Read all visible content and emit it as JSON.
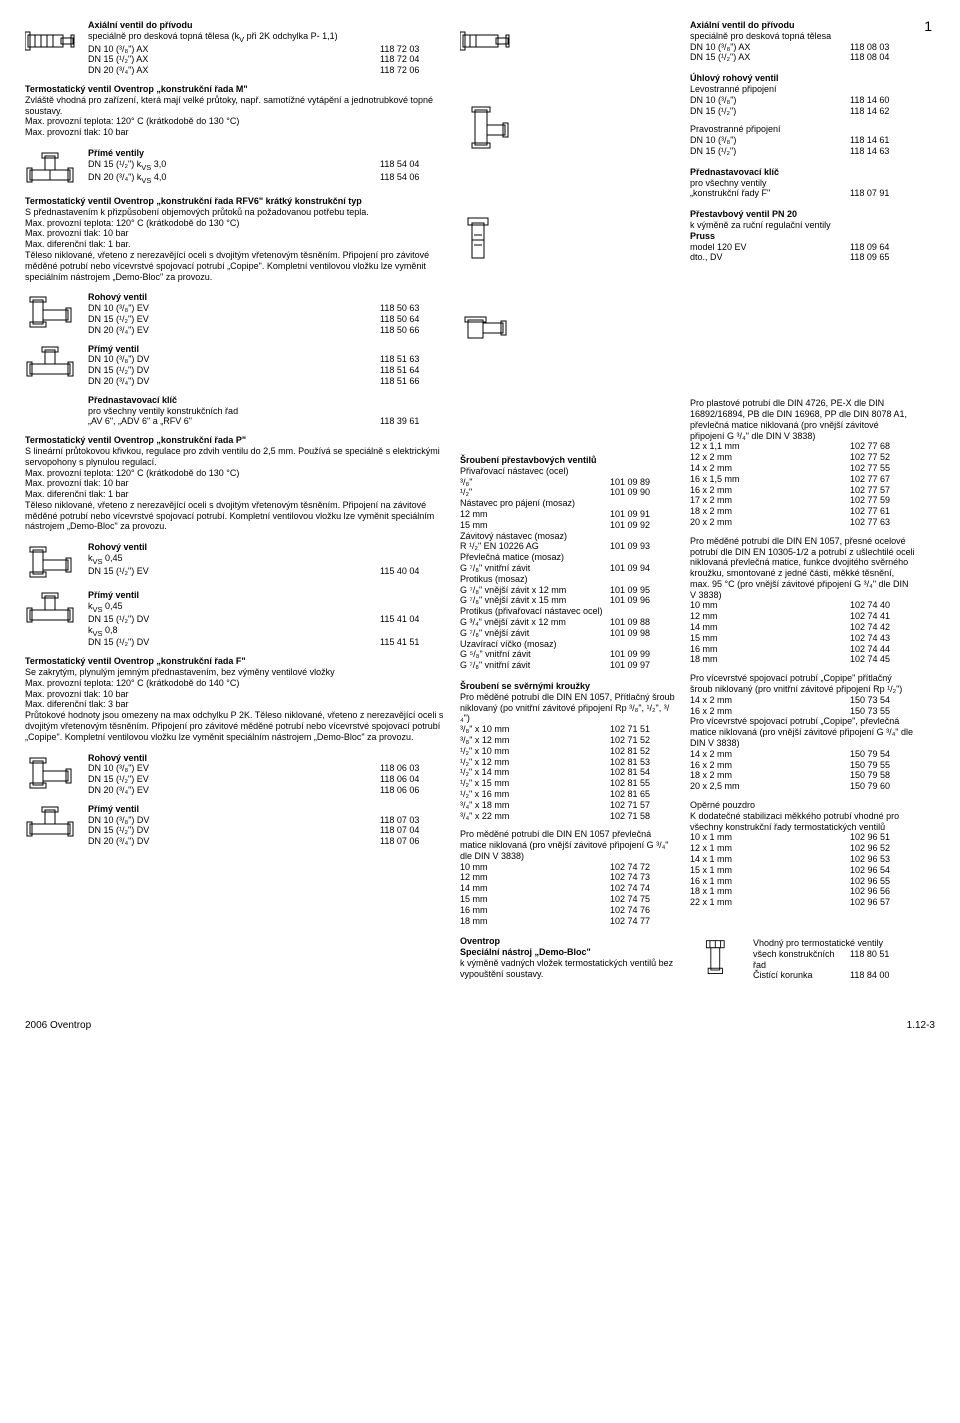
{
  "pageNum": "1",
  "footer": {
    "left": "2006 Oventrop",
    "right": "1.12-3"
  },
  "colLeft": {
    "sec1": {
      "title": "Axiální ventil do přívodu",
      "sub": "speciálně pro desková topná tělesa (k<sub>V</sub> při 2K odchylka P- 1,1)",
      "rows": [
        {
          "l": "DN 10 (³/₈\") AX",
          "r": "118 72 03"
        },
        {
          "l": "DN 15 (¹/₂\") AX",
          "r": "118 72 04"
        },
        {
          "l": "DN 20 (³/₄\") AX",
          "r": "118 72 06"
        }
      ]
    },
    "sec2": {
      "title": "Termostatický ventil Oventrop „konstrukční řada M\"",
      "body": "Zvláště vhodná pro zařízení, která mají velké průtoky, např. samotížné vytápění a jednotrubkové topné soustavy.",
      "p1": "Max. provozní teplota:      120° C (krátkodobě do 130 °C)",
      "p2": "Max. provozní tlak:            10 bar"
    },
    "sec3": {
      "title": "Přímé ventily",
      "rows": [
        {
          "l": "DN 15 (¹/₂\") k<sub>VS</sub> 3,0",
          "r": "118 54 04"
        },
        {
          "l": "DN 20 (³/₄\") k<sub>VS</sub> 4,0",
          "r": "118 54 06"
        }
      ]
    },
    "sec4": {
      "title": "Termostatický ventil Oventrop „konstrukční řada RFV6\" krátký konstrukční typ",
      "body": "S přednastavením k přizpůsobení objemových průtoků na požadovanou potřebu tepla.",
      "p1": "Max. provozní teplota:     120° C (krátkodobě do 130 °C)",
      "p2": "Max. provozní tlak:          10 bar",
      "p3": "Max. diferenční tlak:        1 bar.",
      "body2": "Těleso niklované, vřeteno z nerezavějící oceli s dvojitým vřetenovým těsněním. Připojení pro závitové měděné potrubí nebo vícevrstvé spojovací potrubí „Copipe\". Kompletní ventilovou vložku lze vyměnit speciálním nástrojem „Demo-Bloc\" za provozu."
    },
    "sec5": {
      "title": "Rohový ventil",
      "rows": [
        {
          "l": "DN 10 (³/₈\") EV",
          "r": "118 50 63"
        },
        {
          "l": "DN 15 (¹/₂\") EV",
          "r": "118 50 64"
        },
        {
          "l": "DN 20 (³/₄\") EV",
          "r": "118 50 66"
        }
      ]
    },
    "sec6": {
      "title": "Přímý ventil",
      "rows": [
        {
          "l": "DN 10 (³/₈\") DV",
          "r": "118 51 63"
        },
        {
          "l": "DN 15 (¹/₂\") DV",
          "r": "118 51 64"
        },
        {
          "l": "DN 20 (³/₄\") DV",
          "r": "118 51 66"
        }
      ]
    },
    "sec7": {
      "title": "Přednastavovací klíč",
      "sub": "pro všechny ventily konstrukčních řad",
      "row": {
        "l": "„AV 6\", „ADV 6\" a „RFV 6\"",
        "r": "118 39 61"
      }
    },
    "sec8": {
      "title": "Termostatický ventil Oventrop „konstrukční řada P\"",
      "body": "S lineární průtokovou křivkou, regulace pro zdvih ventilu do 2,5 mm. Používá se speciálně s elektrickými servopohony s plynulou regulací.",
      "p1": "Max. provozní teplota:     120° C (krátkodobě do 130 °C)",
      "p2": "Max. provozní tlak:          10 bar",
      "p3": "Max. diferenční tlak:        1 bar",
      "body2": "Těleso niklované, vřeteno z nerezavějící oceli s dvojitým vřetenovým těsněním. Připojení na závitové měděné potrubí nebo vícevrstvé spojovací potrubí. Kompletní ventilovou vložku lze vyměnit speciálním nástrojem „Demo-Bloc\" za provozu."
    },
    "sec9": {
      "title": "Rohový ventil",
      "sub": "k<sub>VS</sub> 0,45",
      "rows": [
        {
          "l": "DN 15 (¹/₂\") EV",
          "r": "115 40 04"
        }
      ]
    },
    "sec10": {
      "title": "Přímý ventil",
      "sub1": "k<sub>VS</sub> 0,45",
      "row1": {
        "l": "DN 15 (¹/₂\") DV",
        "r": "115 41 04"
      },
      "sub2": "k<sub>VS</sub> 0,8",
      "row2": {
        "l": "DN 15 (¹/₂\") DV",
        "r": "115 41 51"
      }
    },
    "sec11": {
      "title": "Termostatický ventil Oventrop „konstrukční řada F\"",
      "body": "Se zakrytým, plynulým jemným přednastavením, bez výměny ventilové vložky",
      "p1": "Max. provozní teplota:     120° C (krátkodobě do 140 °C)",
      "p2": "Max. provozní tlak:          10 bar",
      "p3": "Max. diferenční tlak:        3 bar",
      "body2": "Průtokové hodnoty jsou omezeny na max odchylku P 2K. Těleso niklované, vřeteno z nerezavějící oceli s dvojitým vřetenovým těsněním. Připojení pro závitové měděné potrubí nebo vícevrstvé spojovací potrubí „Copipe\". Kompletní ventilovou vložku lze vyměnit speciálním nástrojem „Demo-Bloc\" za provozu."
    },
    "sec12": {
      "title": "Rohový ventil",
      "rows": [
        {
          "l": "DN 10 (³/₈\") EV",
          "r": "118 06 03"
        },
        {
          "l": "DN 15 (¹/₂\") EV",
          "r": "118 06 04"
        },
        {
          "l": "DN 20 (³/₄\") EV",
          "r": "118 06 06"
        }
      ]
    },
    "sec13": {
      "title": "Přímý ventil",
      "rows": [
        {
          "l": "DN 10 (³/₈\") DV",
          "r": "118 07 03"
        },
        {
          "l": "DN 15 (¹/₂\") DV",
          "r": "118 07 04"
        },
        {
          "l": "DN 20 (³/₄\") DV",
          "r": "118 07 06"
        }
      ]
    }
  },
  "colMid": {
    "sec1": {
      "title": "Šroubení přestavbových ventilů",
      "sub1": "Přivařovací nástavec (ocel)",
      "rows1": [
        {
          "l": "³/₈\"",
          "r": "101 09 89"
        },
        {
          "l": "¹/₂\"",
          "r": "101 09 90"
        }
      ],
      "sub2": "Nástavec pro pájení (mosaz)",
      "rows2": [
        {
          "l": "12 mm",
          "r": "101 09 91"
        },
        {
          "l": "15 mm",
          "r": "101 09 92"
        }
      ],
      "sub3": "Závitový nástavec (mosaz)",
      "rows3": [
        {
          "l": "R ¹/₂\" EN 10226 AG",
          "r": "101 09 93"
        }
      ],
      "sub4": "Převlečná matice (mosaz)",
      "rows4": [
        {
          "l": "G ⁷/₈\" vnitřní závit",
          "r": "101 09 94"
        }
      ],
      "sub5": "Protikus (mosaz)",
      "rows5": [
        {
          "l": "G ⁷/₈\" vnější závit x 12 mm",
          "r": "101 09 95"
        },
        {
          "l": "G ⁷/₈\" vnější závit x 15 mm",
          "r": "101 09 96"
        }
      ],
      "sub6": "Protikus (přivařovací nástavec ocel)",
      "rows6": [
        {
          "l": "G ³/₄\" vnější závit x 12 mm",
          "r": "101 09 88"
        },
        {
          "l": "G ⁷/₈\" vnější závit",
          "r": "101 09 98"
        }
      ],
      "sub7": "Uzavírací víčko (mosaz)",
      "rows7": [
        {
          "l": "G ⁵/₈\" vnitřní závit",
          "r": "101 09 99"
        },
        {
          "l": "G ⁷/₈\" vnitřní závit",
          "r": "101 09 97"
        }
      ]
    },
    "sec2": {
      "title": "Šroubení se svěrnými kroužky",
      "body": "Pro měděné potrubí dle DIN EN 1057, Přítlačný šroub niklovaný (po vnitřní závitové připojení Rp ³/₈\", ¹/₂\", ³/₄\")",
      "rows": [
        {
          "l": "³/₈\" x 10 mm",
          "r": "102 71 51"
        },
        {
          "l": "³/₈\" x 12 mm",
          "r": "102 71 52"
        },
        {
          "l": "¹/₂\" x 10 mm",
          "r": "102 81 52"
        },
        {
          "l": "¹/₂\" x 12 mm",
          "r": "102 81 53"
        },
        {
          "l": "¹/₂\" x 14 mm",
          "r": "102 81 54"
        },
        {
          "l": "¹/₂\" x 15 mm",
          "r": "102 81 55"
        },
        {
          "l": "¹/₂\" x 16 mm",
          "r": "102 81 65"
        },
        {
          "l": "³/₄\" x 18 mm",
          "r": "102 71 57"
        },
        {
          "l": "³/₄\" x 22 mm",
          "r": "102 71 58"
        }
      ],
      "body2": "Pro měděné potrubí dle DIN EN 1057 převlečná matice niklovaná (pro vnější závitové připojení G ³/₄\" dle DIN V 3838)",
      "rows2": [
        {
          "l": "10 mm",
          "r": "102 74 72"
        },
        {
          "l": "12 mm",
          "r": "102 74 73"
        },
        {
          "l": "14 mm",
          "r": "102 74 74"
        },
        {
          "l": "15 mm",
          "r": "102 74 75"
        },
        {
          "l": "16 mm",
          "r": "102 74 76"
        },
        {
          "l": "18 mm",
          "r": "102 74 77"
        }
      ]
    },
    "sec3": {
      "title": "Oventrop",
      "sub": "Speciální nástroj „Demo-Bloc\"",
      "body": "k výměně vadných vložek termostatických ventilů bez vypouštění soustavy."
    }
  },
  "colRight": {
    "sec1": {
      "title": "Axiální ventil do přívodu",
      "sub": "speciálně pro desková topná tělesa",
      "rows": [
        {
          "l": "DN 10 (³/₈\") AX",
          "r": "118 08 03"
        },
        {
          "l": "DN 15 (¹/₂\") AX",
          "r": "118 08 04"
        }
      ]
    },
    "sec2": {
      "title": "Úhlový rohový ventil",
      "sub": "Levostranné připojení",
      "rows": [
        {
          "l": "DN 10 (³/₈\")",
          "r": "118 14 60"
        },
        {
          "l": "DN 15 (¹/₂\")",
          "r": "118 14 62"
        }
      ],
      "sub2": "Pravostranné připojení",
      "rows2": [
        {
          "l": "DN 10 (³/₈\")",
          "r": "118 14 61"
        },
        {
          "l": "DN 15 (¹/₂\")",
          "r": "118 14 63"
        }
      ]
    },
    "sec3": {
      "title": "Přednastavovací klíč",
      "sub": "pro všechny ventily",
      "row": {
        "l": "„konstrukční řady F\"",
        "r": "118 07 91"
      }
    },
    "sec4": {
      "title": "Přestavbový ventil PN 20",
      "sub": "k výměně za ruční regulační ventily",
      "sub2": "Pruss",
      "rows": [
        {
          "l": "model 120 EV",
          "r": "118 09 64"
        },
        {
          "l": "dto., DV",
          "r": "118 09 65"
        }
      ]
    },
    "sec5": {
      "body": "Pro plastové potrubí dle DIN 4726, PE-X dle DIN 16892/16894, PB dle DIN 16968, PP dle DIN 8078 A1, převlečná matice niklovaná (pro vnější závitové připojení G ³/₄\" dle DIN V 3838)",
      "rows": [
        {
          "l": "12 x 1,1 mm",
          "r": "102 77 68"
        },
        {
          "l": "12 x 2    mm",
          "r": "102 77 52"
        },
        {
          "l": "14 x 2    mm",
          "r": "102 77 55"
        },
        {
          "l": "16 x 1,5 mm",
          "r": "102 77 67"
        },
        {
          "l": "16 x 2    mm",
          "r": "102 77 57"
        },
        {
          "l": "17 x 2    mm",
          "r": "102 77 59"
        },
        {
          "l": "18 x 2    mm",
          "r": "102 77 61"
        },
        {
          "l": "20 x 2    mm",
          "r": "102 77 63"
        }
      ],
      "body2": "Pro měděné potrubí dle DIN EN 1057, přesné ocelové potrubí dle DIN EN 10305-1/2 a potrubí z ušlechtilé oceli niklovaná převlečná matice, funkce dvojitého svěrného kroužku, smontované z jedné části, měkké těsnění, max. 95 °C (pro vnější závitové připojení G ³/₄\" dle DIN V 3838)",
      "rows2": [
        {
          "l": "10 mm",
          "r": "102 74 40"
        },
        {
          "l": "12 mm",
          "r": "102 74 41"
        },
        {
          "l": "14 mm",
          "r": "102 74 42"
        },
        {
          "l": "15 mm",
          "r": "102 74 43"
        },
        {
          "l": "16 mm",
          "r": "102 74 44"
        },
        {
          "l": "18 mm",
          "r": "102 74 45"
        }
      ],
      "body3": "Pro vícevrstvé spojovací potrubí „Copipe\" přítlačný šroub niklovaný (pro vnitřní závitové připojení Rp ¹/₂\")",
      "rows3": [
        {
          "l": "14 x 2 mm",
          "r": "150 73 54"
        },
        {
          "l": "16 x 2 mm",
          "r": "150 73 55"
        }
      ],
      "body4": "Pro vícevrstvé spojovací potrubí „Copipe\", převlečná matice niklovaná (pro vnější závitové připojení G ³/₄\" dle DIN V 3838)",
      "rows4": [
        {
          "l": "14 x 2 mm",
          "r": "150 79 54"
        },
        {
          "l": "16 x 2 mm",
          "r": "150 79 55"
        },
        {
          "l": "18 x 2 mm",
          "r": "150 79 58"
        },
        {
          "l": "20 x 2,5 mm",
          "r": "150 79 60"
        }
      ],
      "body5": "Opěrné pouzdro",
      "body6": "K dodatečné stabilizaci měkkého potrubí vhodné pro všechny konstrukční řady termostatických ventilů",
      "rows5": [
        {
          "l": "10 x 1 mm",
          "r": "102 96 51"
        },
        {
          "l": "12 x 1 mm",
          "r": "102 96 52"
        },
        {
          "l": "14 x 1 mm",
          "r": "102 96 53"
        },
        {
          "l": "15 x 1 mm",
          "r": "102 96 54"
        },
        {
          "l": "16 x 1 mm",
          "r": "102 96 55"
        },
        {
          "l": "18 x 1 mm",
          "r": "102 96 56"
        },
        {
          "l": "22 x 1 mm",
          "r": "102 96 57"
        }
      ]
    },
    "sec6": {
      "body": "Vhodný pro termostatické ventily",
      "rows": [
        {
          "l": "všech konstrukčních řad",
          "r": "118 80 51"
        },
        {
          "l": "Čistící korunka",
          "r": "118 84 00"
        }
      ]
    }
  }
}
